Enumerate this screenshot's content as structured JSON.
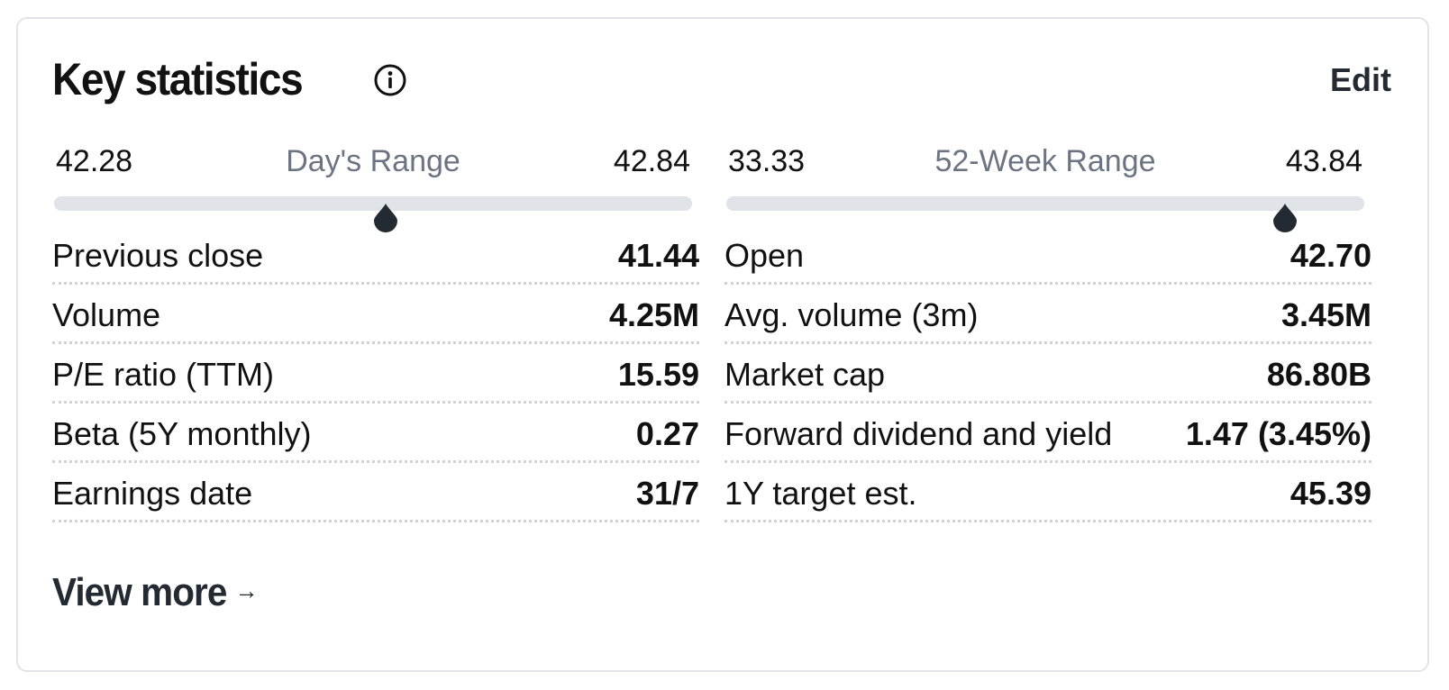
{
  "header": {
    "title": "Key statistics",
    "edit_label": "Edit"
  },
  "days_range": {
    "low": "42.28",
    "label": "Day's Range",
    "high": "42.84",
    "position": 0.52
  },
  "week52_range": {
    "low": "33.33",
    "label": "52-Week Range",
    "high": "43.84",
    "position": 0.875
  },
  "stats_left": [
    {
      "label": "Previous close",
      "value": "41.44"
    },
    {
      "label": "Volume",
      "value": "4.25M"
    },
    {
      "label": "P/E ratio (TTM)",
      "value": "15.59"
    },
    {
      "label": "Beta (5Y monthly)",
      "value": "0.27"
    },
    {
      "label": "Earnings date",
      "value": "31/7"
    }
  ],
  "stats_right": [
    {
      "label": "Open",
      "value": "42.70"
    },
    {
      "label": "Avg. volume (3m)",
      "value": "3.45M"
    },
    {
      "label": "Market cap",
      "value": "86.80B"
    },
    {
      "label": "Forward dividend and yield",
      "value": "1.47 (3.45%)"
    },
    {
      "label": "1Y target est.",
      "value": "45.39"
    }
  ],
  "footer": {
    "view_more_label": "View more",
    "arrow_icon": "arrow-right-icon"
  },
  "colors": {
    "track": "#e0e3e8",
    "marker": "#232a31",
    "muted_label": "#6b7480"
  }
}
